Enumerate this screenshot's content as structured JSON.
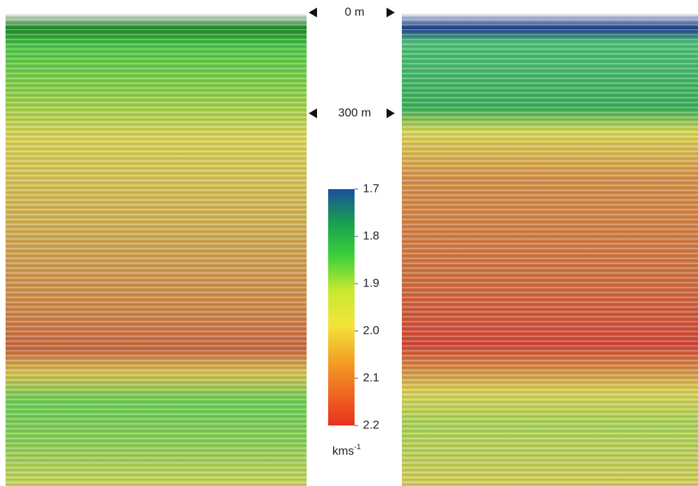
{
  "chart_data": {
    "type": "colorbar",
    "depth_labels": [
      "0 m",
      "300 m"
    ],
    "colorbar_lim": [
      1.7,
      2.2
    ],
    "colorbar_ticks": [
      1.7,
      1.8,
      1.9,
      {
        "value": 2,
        "label": "2.0"
      },
      2.1,
      2.2
    ],
    "colormap": [
      "#1b4f9e",
      "#18a050",
      "#3fd03a",
      "#c8e830",
      "#f2e63a",
      "#f4a526",
      "#f06a22",
      "#e8321e"
    ],
    "unit": "kms",
    "unit_exponent": "-1"
  }
}
